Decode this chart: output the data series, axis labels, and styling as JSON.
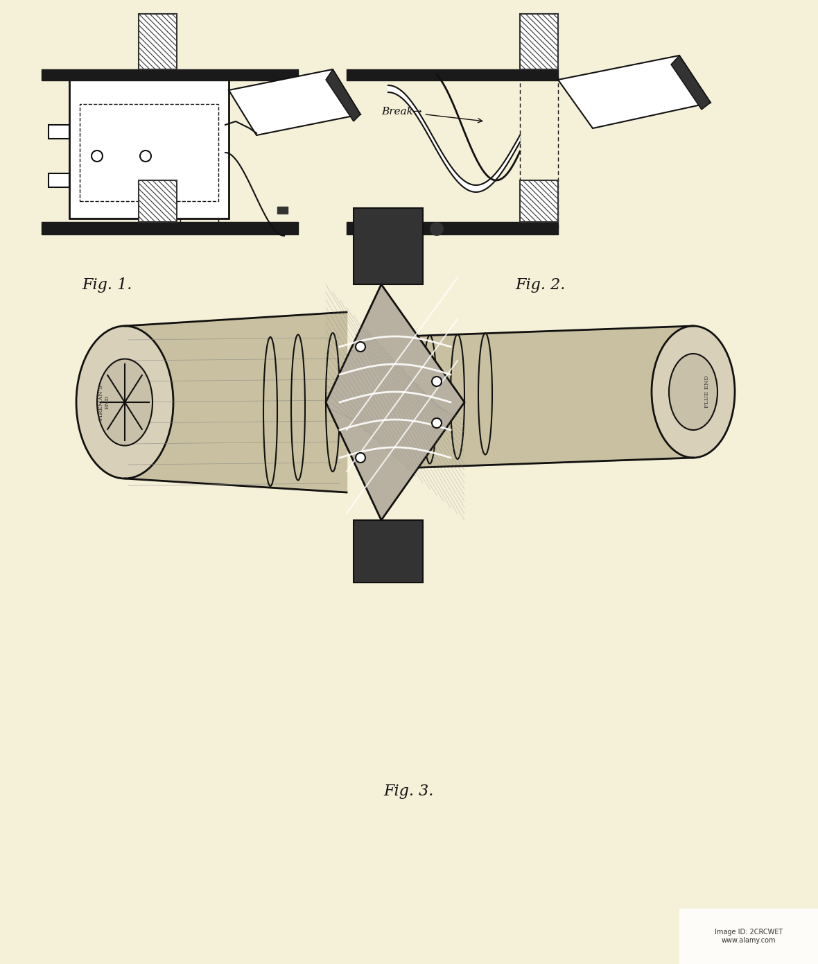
{
  "bg_color": "#f5f0d8",
  "fig_width": 11.8,
  "fig_height": 13.9,
  "dpi": 100,
  "fig1_label": "Fig. 1.",
  "fig2_label": "Fig. 2.",
  "fig3_label": "Fig. 3.",
  "break_label": "Break→",
  "label_fontsize": 16,
  "break_fontsize": 11,
  "line_color": "#111111",
  "hatch_color": "#222222",
  "watermark_text": "2CRCWET",
  "alamy_text": "Image ID: 2CRCWET\nwww.alamy.com"
}
